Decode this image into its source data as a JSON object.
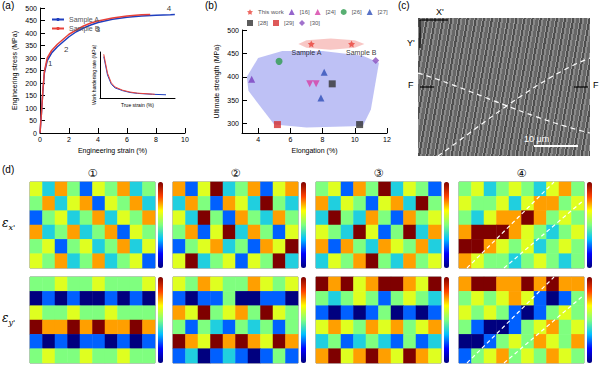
{
  "chart_data": [
    {
      "type": "line",
      "panel": "(a)",
      "x_label": "Engineering strain (%)",
      "y_label": "Engineering stress (MPa)",
      "xlim": [
        0,
        10
      ],
      "xticks": [
        0,
        2,
        4,
        6,
        8,
        10
      ],
      "ylim": [
        0,
        500
      ],
      "yticks": [
        0,
        50,
        100,
        150,
        200,
        250,
        300,
        350,
        400,
        450,
        500
      ],
      "legend": "upper left",
      "series": [
        {
          "name": "Sample A",
          "color": "#1f3fbf",
          "x": [
            0,
            0.1,
            0.2,
            0.3,
            0.5,
            0.8,
            1.2,
            1.6,
            2,
            2.5,
            3,
            3.5,
            4,
            5,
            6,
            7,
            8,
            9,
            9.3
          ],
          "values": [
            0,
            80,
            170,
            240,
            290,
            320,
            345,
            365,
            385,
            405,
            420,
            432,
            442,
            455,
            463,
            468,
            471,
            473,
            474
          ]
        },
        {
          "name": "Sample B",
          "color": "#e8423a",
          "x": [
            0,
            0.1,
            0.2,
            0.3,
            0.5,
            0.8,
            1.2,
            1.6,
            2,
            2.5,
            3,
            3.5,
            4,
            5,
            6,
            7,
            7.6
          ],
          "values": [
            0,
            80,
            170,
            245,
            300,
            330,
            355,
            375,
            395,
            412,
            428,
            440,
            448,
            460,
            468,
            473,
            474
          ]
        }
      ],
      "annotations": [
        {
          "text": "1",
          "x": 0.7,
          "y": 280
        },
        {
          "text": "2",
          "x": 1.8,
          "y": 335
        },
        {
          "text": "3",
          "x": 4,
          "y": 415
        },
        {
          "text": "4",
          "x": 8.9,
          "y": 497
        }
      ],
      "inset": {
        "type": "line",
        "x_label": "True strain (%)",
        "y_label": "Work hardening rate (MPa)",
        "xlim": [
          0,
          10
        ],
        "ylim": [
          0,
          10000
        ],
        "tick_labels": false,
        "series": [
          {
            "color": "#1f3fbf",
            "x": [
              0.5,
              1,
              1.5,
              2,
              3,
              4,
              5,
              6,
              7,
              8,
              8.8
            ],
            "values": [
              9000,
              5000,
              3000,
              2200,
              1600,
              1200,
              1000,
              900,
              800,
              750,
              700
            ]
          },
          {
            "color": "#e8423a",
            "x": [
              0.5,
              1,
              1.5,
              2,
              3,
              4,
              5,
              6,
              7,
              7.3
            ],
            "values": [
              9500,
              5400,
              3300,
              2400,
              1700,
              1300,
              1050,
              950,
              850,
              800
            ]
          }
        ]
      }
    },
    {
      "type": "scatter",
      "panel": "(b)",
      "x_label": "Elongation (%)",
      "y_label": "Ultimate strength (MPa)",
      "xlim": [
        3,
        12
      ],
      "xticks": [
        4,
        6,
        8,
        10,
        12
      ],
      "ylim": [
        280,
        500
      ],
      "yticks": [
        300,
        350,
        400,
        450,
        500
      ],
      "legend": "upper left",
      "regions": [
        {
          "color": "#aeb2f2",
          "points": [
            [
              3.3,
              400
            ],
            [
              4,
              440
            ],
            [
              5.5,
              455
            ],
            [
              8,
              455
            ],
            [
              10.5,
              445
            ],
            [
              11.5,
              430
            ],
            [
              11,
              330
            ],
            [
              10.5,
              295
            ],
            [
              7,
              292
            ],
            [
              5,
              298
            ],
            [
              3.4,
              370
            ]
          ]
        },
        {
          "color": "#f6b9b6",
          "points": [
            [
              6.5,
              470
            ],
            [
              7,
              478
            ],
            [
              8.5,
              482
            ],
            [
              10,
              478
            ],
            [
              10.6,
              470
            ],
            [
              10,
              462
            ],
            [
              8.5,
              458
            ],
            [
              7,
              462
            ]
          ]
        }
      ],
      "series": [
        {
          "name": "This work",
          "color": "#e8423a",
          "marker": "star",
          "x": [
            7.3,
            9.8
          ],
          "values": [
            470,
            470
          ]
        },
        {
          "name": "[16]",
          "color": "#7b3fbf",
          "marker": "triangle",
          "x": [
            3.6
          ],
          "values": [
            395
          ]
        },
        {
          "name": "[24]",
          "color": "#d63fa6",
          "marker": "triangle-down",
          "x": [
            7.2,
            7.6
          ],
          "values": [
            385,
            385
          ]
        },
        {
          "name": "[26]",
          "color": "#2e9b4f",
          "marker": "circle",
          "x": [
            5.3
          ],
          "values": [
            433
          ]
        },
        {
          "name": "[27]",
          "color": "#2f4fb8",
          "marker": "triangle",
          "x": [
            8.1,
            7.9
          ],
          "values": [
            410,
            355
          ]
        },
        {
          "name": "[28]",
          "color": "#333333",
          "marker": "square",
          "x": [
            8.6,
            10.3
          ],
          "values": [
            385,
            298
          ]
        },
        {
          "name": "[29]",
          "color": "#d62f2f",
          "marker": "square",
          "x": [
            5.2
          ],
          "values": [
            298
          ]
        },
        {
          "name": "[30]",
          "color": "#8a4fbf",
          "marker": "diamond",
          "x": [
            11.3
          ],
          "values": [
            435
          ]
        }
      ],
      "annotations": [
        {
          "text": "Sample A",
          "x": 7,
          "y": 452
        },
        {
          "text": "Sample B",
          "x": 10.4,
          "y": 452
        }
      ]
    },
    {
      "type": "heatmap",
      "panel": "(d)",
      "columns": [
        "①",
        "②",
        "③",
        "④"
      ],
      "rows": [
        {
          "symbol": "ε",
          "sub": "x'"
        },
        {
          "symbol": "ε",
          "sub": "y'"
        }
      ],
      "crange": [
        -0.2,
        0.2
      ],
      "maps": [
        [
          [
            [
              0.05,
              -0.05,
              0.1,
              0,
              -0.1,
              0.05,
              0,
              0.1,
              -0.05,
              0
            ],
            [
              0,
              0.1,
              -0.05,
              0.05,
              0.1,
              -0.1,
              0.05,
              0,
              0.1,
              -0.05
            ],
            [
              -0.1,
              0,
              0.05,
              -0.05,
              0,
              0.1,
              -0.05,
              0.05,
              0,
              0.1
            ],
            [
              0.1,
              -0.05,
              0,
              0.1,
              -0.05,
              0,
              0.1,
              -0.1,
              0.05,
              0
            ],
            [
              0,
              0.05,
              -0.1,
              0,
              0.05,
              -0.05,
              0,
              0.1,
              -0.05,
              0.05
            ],
            [
              0.05,
              0,
              0.1,
              -0.05,
              0,
              0.1,
              -0.05,
              0,
              0.05,
              -0.1
            ]
          ],
          [
            [
              0.1,
              -0.1,
              0.05,
              0.2,
              -0.05,
              0,
              0.1,
              -0.1,
              0.05,
              0.1
            ],
            [
              -0.05,
              0.1,
              0,
              -0.1,
              0.1,
              0.05,
              -0.05,
              0.2,
              0,
              -0.05
            ],
            [
              0.05,
              -0.05,
              0.2,
              0,
              -0.1,
              0.1,
              0,
              -0.05,
              0.1,
              0
            ],
            [
              0,
              0.1,
              -0.1,
              0.05,
              0.2,
              -0.05,
              0.1,
              0,
              -0.1,
              0.05
            ],
            [
              -0.1,
              0,
              0.05,
              0.1,
              -0.05,
              0,
              -0.1,
              0.1,
              0.05,
              0.2
            ],
            [
              0.05,
              0.2,
              -0.05,
              0,
              0.05,
              -0.1,
              0.05,
              0,
              0.2,
              -0.05
            ]
          ],
          [
            [
              0,
              0.05,
              -0.1,
              0.1,
              0,
              0.2,
              -0.05,
              0.05,
              0,
              -0.1
            ],
            [
              0.1,
              -0.05,
              0.05,
              0,
              -0.1,
              0.05,
              0.1,
              -0.05,
              0.2,
              0
            ],
            [
              -0.05,
              0.2,
              0,
              -0.05,
              0.1,
              0,
              -0.1,
              0.1,
              0,
              0.05
            ],
            [
              0.05,
              0,
              -0.05,
              0.2,
              0.05,
              -0.1,
              0,
              0.2,
              -0.05,
              0.1
            ],
            [
              0.1,
              -0.1,
              0.1,
              0,
              -0.05,
              0.1,
              0.05,
              0,
              0.1,
              -0.05
            ],
            [
              -0.05,
              0.05,
              0,
              0.1,
              0.2,
              0,
              -0.05,
              0.1,
              0,
              0.05
            ]
          ],
          [
            [
              0,
              0.05,
              -0.05,
              0,
              0.05,
              0,
              -0.05,
              0.05,
              0.1,
              0
            ],
            [
              0.05,
              0,
              0,
              0.05,
              -0.05,
              0.05,
              0.1,
              0.1,
              0,
              0.05
            ],
            [
              0,
              -0.05,
              0.05,
              0.1,
              0.1,
              0.2,
              0.1,
              0,
              0.05,
              0
            ],
            [
              0.1,
              0.2,
              0.2,
              0.2,
              0.1,
              0.05,
              0,
              -0.05,
              0,
              0.05
            ],
            [
              0.2,
              0.2,
              0.1,
              0.05,
              0,
              0.05,
              -0.05,
              0,
              0.05,
              0
            ],
            [
              0.1,
              0.05,
              0,
              0,
              -0.05,
              0,
              0.05,
              0,
              -0.05,
              0
            ]
          ]
        ],
        [
          [
            [
              0,
              0,
              0.05,
              0,
              0,
              0.05,
              0,
              0,
              0,
              0.05
            ],
            [
              -0.2,
              -0.1,
              -0.2,
              -0.1,
              -0.2,
              -0.2,
              -0.1,
              -0.2,
              -0.1,
              -0.2
            ],
            [
              0.05,
              0,
              0,
              0.05,
              0,
              0,
              0.05,
              0,
              0,
              0
            ],
            [
              0.2,
              0.1,
              0.1,
              0.2,
              0.1,
              0.2,
              0.1,
              0.1,
              0.2,
              0.1
            ],
            [
              -0.1,
              -0.2,
              -0.1,
              -0.2,
              -0.1,
              -0.1,
              -0.2,
              -0.1,
              -0.2,
              -0.1
            ],
            [
              0,
              0.05,
              0,
              0,
              0.05,
              0,
              0,
              0.05,
              0,
              0
            ]
          ],
          [
            [
              0.05,
              0,
              0.1,
              0.05,
              0,
              0,
              0.1,
              0.05,
              0,
              0.05
            ],
            [
              -0.1,
              -0.2,
              -0.1,
              -0.1,
              0,
              -0.2,
              -0.2,
              -0.1,
              -0.1,
              -0.2
            ],
            [
              0.1,
              0.05,
              0.2,
              0,
              0.05,
              0.1,
              0,
              0.2,
              0.05,
              0
            ],
            [
              0,
              -0.1,
              0,
              -0.05,
              -0.1,
              0,
              -0.05,
              0,
              -0.1,
              0
            ],
            [
              0.2,
              0.1,
              0.05,
              0.2,
              0.1,
              0.2,
              0.1,
              0.05,
              0.2,
              0.1
            ],
            [
              -0.1,
              -0.05,
              -0.2,
              -0.1,
              -0.05,
              -0.1,
              -0.2,
              -0.1,
              0,
              -0.1
            ]
          ],
          [
            [
              0.2,
              0.1,
              0.2,
              0.05,
              0.1,
              0.2,
              0.2,
              0.1,
              0.05,
              0.2
            ],
            [
              0,
              -0.05,
              0,
              0.05,
              0,
              -0.1,
              0,
              0.05,
              0,
              -0.05
            ],
            [
              -0.1,
              -0.2,
              -0.1,
              -0.2,
              -0.1,
              0,
              -0.2,
              -0.1,
              -0.2,
              -0.1
            ],
            [
              0.05,
              0.1,
              0.05,
              0,
              0.1,
              0.05,
              0.1,
              0,
              0.05,
              0.1
            ],
            [
              -0.05,
              0,
              -0.1,
              -0.05,
              0,
              -0.05,
              -0.1,
              0,
              -0.1,
              -0.05
            ],
            [
              0.1,
              0.2,
              0.05,
              0.1,
              0.2,
              0.1,
              0.05,
              0.2,
              0.1,
              0.05
            ]
          ],
          [
            [
              0.1,
              0.2,
              0.2,
              0.1,
              0.1,
              0.2,
              0.1,
              0.2,
              0.1,
              0.1
            ],
            [
              0,
              0.05,
              0,
              0.05,
              0.1,
              0.05,
              -0.1,
              -0.2,
              -0.1,
              0
            ],
            [
              0.05,
              0,
              0.05,
              0,
              -0.1,
              -0.2,
              -0.1,
              0,
              0.05,
              0
            ],
            [
              0,
              -0.1,
              -0.2,
              -0.2,
              -0.1,
              0,
              0.05,
              0.1,
              0,
              0.05
            ],
            [
              -0.2,
              -0.2,
              -0.1,
              0,
              0.05,
              0,
              0.1,
              0.05,
              0,
              0.1
            ],
            [
              -0.1,
              0,
              0.05,
              0.1,
              0,
              0.05,
              0,
              0.1,
              0.05,
              0
            ]
          ]
        ]
      ]
    }
  ],
  "micrograph": {
    "panel": "(c)",
    "axes": [
      "X'",
      "Y'"
    ],
    "forces": [
      "F",
      "F"
    ],
    "scale_bar": "10 μm"
  }
}
